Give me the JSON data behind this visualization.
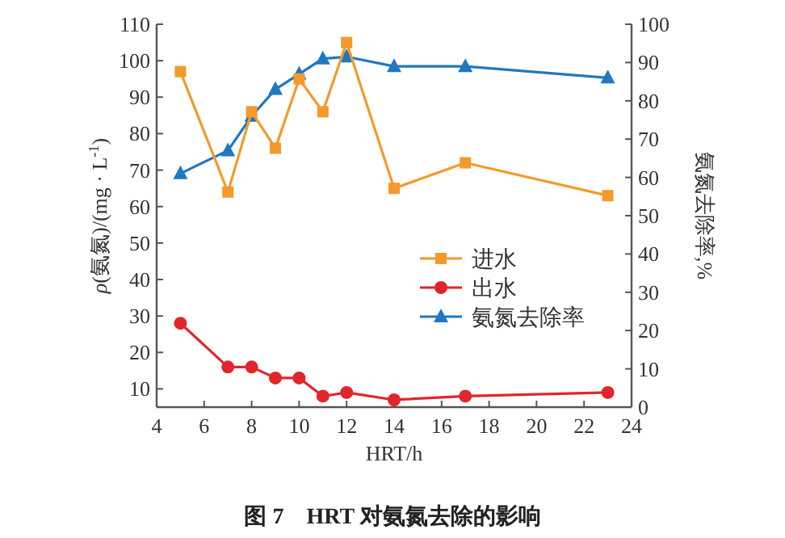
{
  "chart_data": {
    "type": "line",
    "xlabel": "HRT/h",
    "ylabel": "*ρ*(氨氮)/(mg · L$^{-1}$)",
    "y2label": "氨氮去除率,%",
    "x": [
      5,
      7,
      8,
      9,
      10,
      11,
      12,
      14,
      17,
      23
    ],
    "series": [
      {
        "name": "进水",
        "color": "#f39a2b",
        "marker": "square",
        "values": [
          97,
          64,
          86,
          76,
          95,
          86,
          105,
          65,
          72,
          63
        ]
      },
      {
        "name": "出水",
        "color": "#e0262b",
        "marker": "circle",
        "values": [
          28,
          16,
          16,
          13,
          13,
          8,
          9,
          7,
          8,
          9
        ]
      },
      {
        "name": "氨氮去除率",
        "color": "#1f78c1",
        "marker": "triangle",
        "axis": "y2",
        "values": [
          61,
          67,
          76,
          83,
          87,
          91,
          91.5,
          89,
          89,
          86
        ]
      }
    ],
    "xlim": [
      4,
      24
    ],
    "xticks": [
      4,
      6,
      8,
      10,
      12,
      14,
      16,
      18,
      20,
      22,
      24
    ],
    "ylim": [
      5,
      110
    ],
    "yticks": [
      10,
      20,
      30,
      40,
      50,
      60,
      70,
      80,
      90,
      100,
      110
    ],
    "y2lim": [
      0,
      100
    ],
    "y2ticks": [
      0,
      10,
      20,
      30,
      40,
      50,
      60,
      70,
      80,
      90,
      100
    ],
    "legend": "right",
    "grid": false,
    "annotations": [
      "图 7　HRT 对氨氮去除的影响"
    ]
  }
}
